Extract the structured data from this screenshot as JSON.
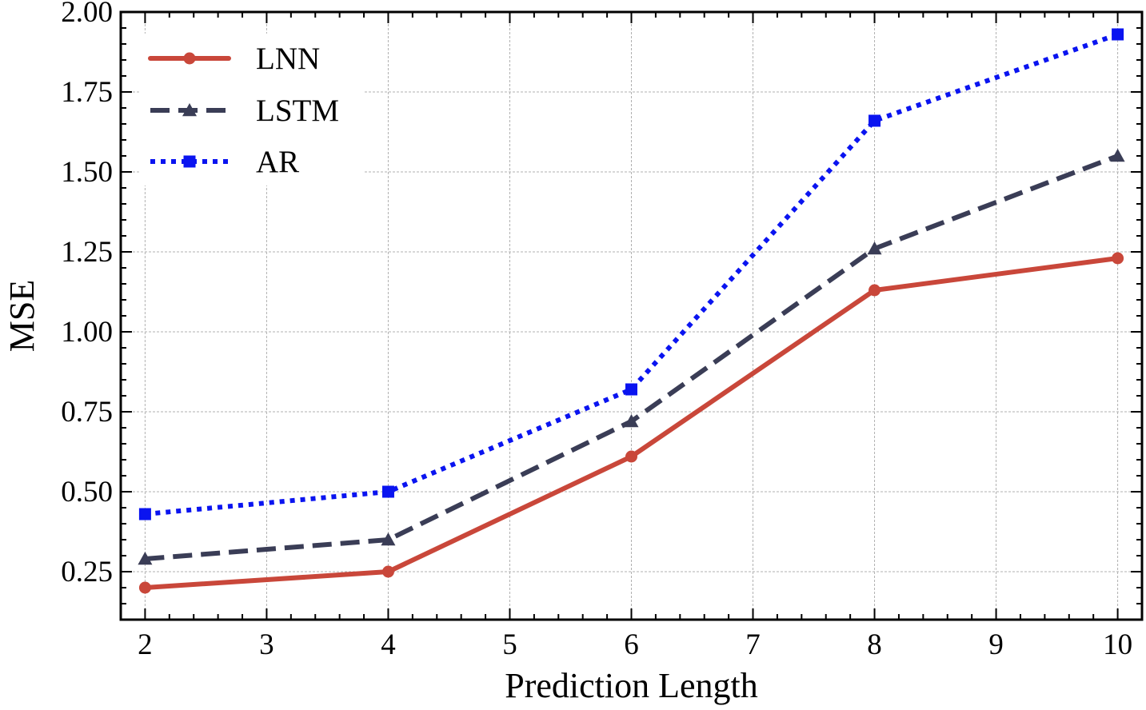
{
  "chart_data": {
    "type": "line",
    "title": "",
    "xlabel": "Prediction Length",
    "ylabel": "MSE",
    "xlim": [
      1.8,
      10.2
    ],
    "ylim": [
      0.1,
      2.0
    ],
    "grid": true,
    "legend_position": "top-left",
    "x": [
      2,
      4,
      6,
      8,
      10
    ],
    "x_ticks": [
      2,
      3,
      4,
      5,
      6,
      7,
      8,
      9,
      10
    ],
    "x_tick_labels": [
      "2",
      "3",
      "4",
      "5",
      "6",
      "7",
      "8",
      "9",
      "10"
    ],
    "y_ticks": [
      0.25,
      0.5,
      0.75,
      1.0,
      1.25,
      1.5,
      1.75,
      2.0
    ],
    "y_tick_labels": [
      "0.25",
      "0.50",
      "0.75",
      "1.00",
      "1.25",
      "1.50",
      "1.75",
      "2.00"
    ],
    "series": [
      {
        "name": "LNN",
        "values": [
          0.2,
          0.25,
          0.61,
          1.13,
          1.23
        ],
        "color": "#c9473a",
        "line_style": "solid",
        "marker": "circle"
      },
      {
        "name": "LSTM",
        "values": [
          0.29,
          0.35,
          0.72,
          1.26,
          1.55
        ],
        "color": "#3a3d56",
        "line_style": "dashed",
        "marker": "triangle"
      },
      {
        "name": "AR",
        "values": [
          0.43,
          0.5,
          0.82,
          1.66,
          1.93
        ],
        "color": "#0a14f0",
        "line_style": "dotted",
        "marker": "square"
      }
    ]
  }
}
